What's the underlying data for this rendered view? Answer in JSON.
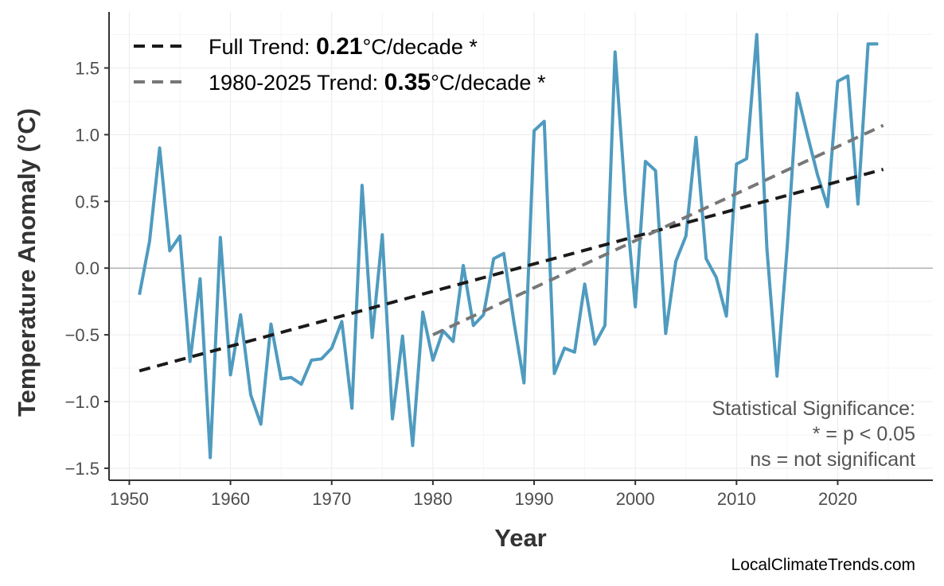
{
  "chart_data": {
    "type": "line",
    "xlabel": "Year",
    "ylabel": "Temperature Anomaly (°C)",
    "xlim": [
      1948,
      2029.4
    ],
    "ylim": [
      -1.59,
      1.92
    ],
    "xticks": [
      1950,
      1960,
      1970,
      1980,
      1990,
      2000,
      2010,
      2020
    ],
    "yticks": [
      -1.5,
      -1.0,
      -0.5,
      0.0,
      0.5,
      1.0,
      1.5
    ],
    "ytick_labels": [
      "−1.5",
      "−1.0",
      "−0.5",
      "0.0",
      "0.5",
      "1.0",
      "1.5"
    ],
    "grid": true,
    "zero_line": true,
    "legend_position": "top-left",
    "series": [
      {
        "color": "#4f9bbf",
        "x": [
          1951,
          1952,
          1953,
          1954,
          1955,
          1956,
          1957,
          1958,
          1959,
          1960,
          1961,
          1962,
          1963,
          1964,
          1965,
          1966,
          1967,
          1968,
          1969,
          1970,
          1971,
          1972,
          1973,
          1974,
          1975,
          1976,
          1977,
          1978,
          1979,
          1980,
          1981,
          1982,
          1983,
          1984,
          1985,
          1986,
          1987,
          1988,
          1989,
          1990,
          1991,
          1992,
          1993,
          1994,
          1995,
          1996,
          1997,
          1998,
          1999,
          2000,
          2001,
          2002,
          2003,
          2004,
          2005,
          2006,
          2007,
          2008,
          2009,
          2010,
          2011,
          2012,
          2013,
          2014,
          2015,
          2016,
          2017,
          2018,
          2019,
          2020,
          2021,
          2022,
          2023,
          2024
        ],
        "y": [
          -0.2,
          0.2,
          0.9,
          0.13,
          0.24,
          -0.7,
          -0.08,
          -1.42,
          0.23,
          -0.8,
          -0.35,
          -0.95,
          -1.17,
          -0.42,
          -0.83,
          -0.82,
          -0.87,
          -0.69,
          -0.68,
          -0.6,
          -0.4,
          -1.05,
          0.62,
          -0.52,
          0.25,
          -1.13,
          -0.51,
          -1.33,
          -0.33,
          -0.69,
          -0.47,
          -0.55,
          0.02,
          -0.43,
          -0.35,
          0.07,
          0.11,
          -0.4,
          -0.86,
          1.03,
          1.1,
          -0.79,
          -0.6,
          -0.63,
          -0.12,
          -0.57,
          -0.43,
          1.62,
          0.55,
          -0.29,
          0.8,
          0.73,
          -0.49,
          0.05,
          0.24,
          0.98,
          0.07,
          -0.07,
          -0.36,
          0.78,
          0.82,
          1.75,
          0.15,
          -0.81,
          0.15,
          1.31,
          1.0,
          0.7,
          0.46,
          1.4,
          1.44,
          0.48,
          1.68,
          1.68
        ]
      }
    ],
    "trends": [
      {
        "label_prefix": "Full Trend: ",
        "value": "0.21",
        "label_suffix": "°C/decade *",
        "color": "#1a1a1a",
        "x": [
          1951,
          2024.5
        ],
        "y": [
          -0.77,
          0.74
        ]
      },
      {
        "label_prefix": "1980-2025 Trend: ",
        "value": "0.35",
        "label_suffix": "°C/decade *",
        "color": "#777777",
        "x": [
          1980,
          2024.5
        ],
        "y": [
          -0.5,
          1.07
        ]
      }
    ],
    "annotation": [
      "Statistical Significance:",
      "* = p < 0.05",
      "ns = not significant"
    ],
    "source": "LocalClimateTrends.com"
  }
}
